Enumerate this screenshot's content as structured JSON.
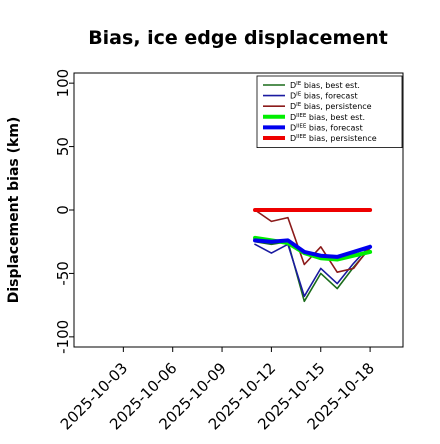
{
  "chart_data": {
    "type": "line",
    "title": "Bias, ice edge displacement",
    "xlabel": "",
    "ylabel": "Displacement bias (km)",
    "ylim": [
      -108,
      108
    ],
    "xlim": [
      "2025-09-30",
      "2025-10-20"
    ],
    "y_ticks": [
      100,
      50,
      0,
      -50,
      -100
    ],
    "x_ticks": [
      {
        "date": "2025-10-03",
        "label": "2025-10-03",
        "color": "#000000"
      },
      {
        "date": "2025-10-06",
        "label": "2025-10-06",
        "color": "#000000"
      },
      {
        "date": "2025-10-09",
        "label": "2025-10-09",
        "color": "#2e8b20"
      },
      {
        "date": "2025-10-12",
        "label": "2025-10-12",
        "color": "#000000"
      },
      {
        "date": "2025-10-15",
        "label": "2025-10-15",
        "color": "#000000"
      },
      {
        "date": "2025-10-18",
        "label": "2025-10-18",
        "color": "#000000"
      }
    ],
    "grid": false,
    "legend_position": "top-right",
    "series": [
      {
        "name": "Dᴵᴱ bias, best est.",
        "legend_base": "D",
        "legend_sup": "IE",
        "legend_rest": " bias, best est.",
        "color": "#1a6b1a",
        "width": 1.6,
        "x": [
          "2025-10-11",
          "2025-10-12",
          "2025-10-13",
          "2025-10-14",
          "2025-10-15",
          "2025-10-16",
          "2025-10-17",
          "2025-10-18"
        ],
        "y": [
          -25,
          -27,
          -25,
          -72,
          -50,
          -62,
          -45,
          -30
        ]
      },
      {
        "name": "Dᴵᴱ bias, forecast",
        "legend_base": "D",
        "legend_sup": "IE",
        "legend_rest": " bias, forecast",
        "color": "#1a1aa0",
        "width": 1.6,
        "x": [
          "2025-10-11",
          "2025-10-12",
          "2025-10-13",
          "2025-10-14",
          "2025-10-15",
          "2025-10-16",
          "2025-10-17",
          "2025-10-18"
        ],
        "y": [
          -27,
          -34,
          -27,
          -68,
          -46,
          -58,
          -42,
          -28
        ]
      },
      {
        "name": "Dᴵᴱ bias, persistence",
        "legend_base": "D",
        "legend_sup": "IE",
        "legend_rest": " bias, persistence",
        "color": "#8b1a1a",
        "width": 1.6,
        "x": [
          "2025-10-11",
          "2025-10-12",
          "2025-10-13",
          "2025-10-14",
          "2025-10-15",
          "2025-10-16",
          "2025-10-17",
          "2025-10-18"
        ],
        "y": [
          0,
          -9,
          -6,
          -43,
          -29,
          -49,
          -46,
          -29
        ]
      },
      {
        "name": "Dᴵᴱᴱ bias, best est.",
        "legend_base": "D",
        "legend_sup": "IIEE",
        "legend_rest": " bias, best est.",
        "color": "#00ee00",
        "width": 4,
        "x": [
          "2025-10-11",
          "2025-10-12",
          "2025-10-13",
          "2025-10-14",
          "2025-10-15",
          "2025-10-16",
          "2025-10-17",
          "2025-10-18"
        ],
        "y": [
          -22,
          -24,
          -26,
          -34,
          -38,
          -39,
          -36,
          -33
        ]
      },
      {
        "name": "Dᴵᴱᴱ bias, forecast",
        "legend_base": "D",
        "legend_sup": "IIEE",
        "legend_rest": " bias, forecast",
        "color": "#0000ee",
        "width": 4,
        "x": [
          "2025-10-11",
          "2025-10-12",
          "2025-10-13",
          "2025-10-14",
          "2025-10-15",
          "2025-10-16",
          "2025-10-17",
          "2025-10-18"
        ],
        "y": [
          -24,
          -25,
          -24,
          -33,
          -36,
          -37,
          -33,
          -29
        ]
      },
      {
        "name": "Dᴵᴱᴱ bias, persistence",
        "legend_base": "D",
        "legend_sup": "IIEE",
        "legend_rest": " bias, persistence",
        "color": "#ee0000",
        "width": 4,
        "x": [
          "2025-10-11",
          "2025-10-12",
          "2025-10-13",
          "2025-10-14",
          "2025-10-15",
          "2025-10-16",
          "2025-10-17",
          "2025-10-18"
        ],
        "y": [
          0,
          0,
          0,
          0,
          0,
          0,
          0,
          0
        ]
      }
    ]
  }
}
